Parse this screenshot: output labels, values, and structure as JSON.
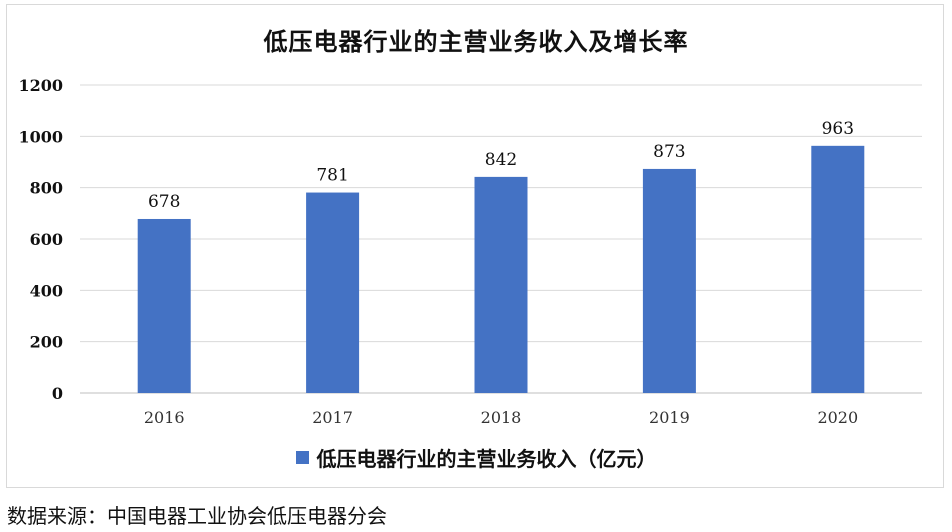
{
  "chart_data": {
    "type": "bar",
    "title": "低压电器行业的主营业务收入及增长率",
    "categories": [
      "2016",
      "2017",
      "2018",
      "2019",
      "2020"
    ],
    "series": [
      {
        "name": "低压电器行业的主营业务收入（亿元）",
        "values": [
          678,
          781,
          842,
          873,
          963
        ],
        "color": "#4472c4"
      }
    ],
    "data_labels": [
      "678",
      "781",
      "842",
      "873",
      "963"
    ],
    "ylim": [
      0,
      1200
    ],
    "yticks": [
      "0",
      "200",
      "400",
      "600",
      "800",
      "1000",
      "1200"
    ],
    "grid": true,
    "legend": "bottom"
  },
  "source_note": "数据来源：中国电器工业协会低压电器分会"
}
